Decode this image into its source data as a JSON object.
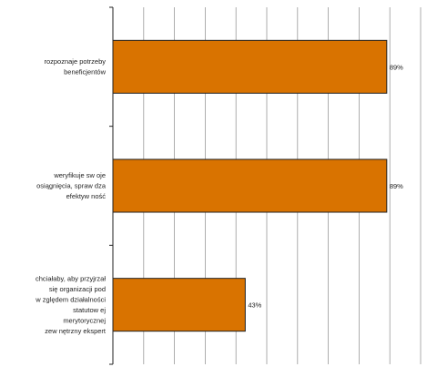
{
  "chart_data": {
    "type": "bar",
    "orientation": "horizontal",
    "categories": [
      [
        "rozpoznaje potrzeby",
        "beneficjentów"
      ],
      [
        "weryfikuje sw oje",
        "osiągnięcia, spraw dza",
        "efektyw ność"
      ],
      [
        "chciałaby, aby przyjrzał",
        "się organizacji pod",
        "w zględem działalności",
        "statutow ej",
        "merytorycznej",
        "zew nętrzny ekspert"
      ]
    ],
    "values": [
      89,
      89,
      43
    ],
    "value_labels": [
      "89%",
      "89%",
      "43%"
    ],
    "xlim": [
      0,
      100
    ],
    "grid": true,
    "bar_color": "#D97300",
    "bar_edge_color": "#222222"
  }
}
